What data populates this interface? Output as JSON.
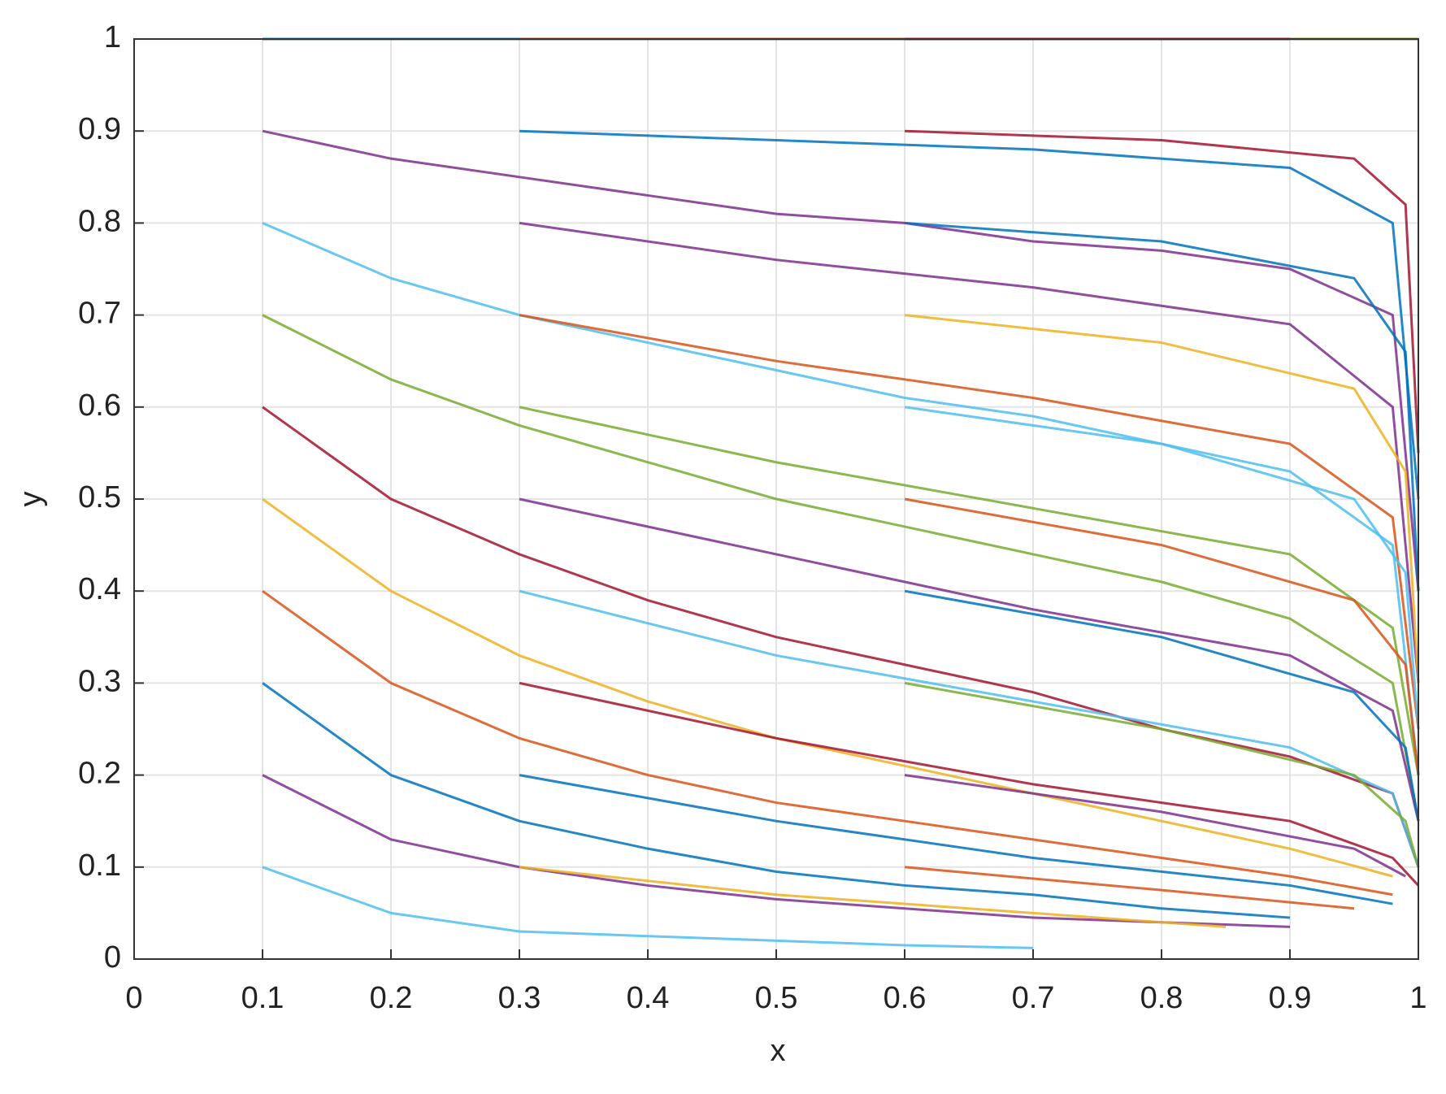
{
  "chart_data": {
    "type": "line",
    "x_label": "x",
    "y_label": "y",
    "grid": true,
    "xlim": [
      0,
      1
    ],
    "ylim": [
      0,
      1
    ],
    "xticks": [
      0,
      0.1,
      0.2,
      0.3,
      0.4,
      0.5,
      0.6,
      0.7,
      0.8,
      0.9,
      1
    ],
    "yticks": [
      0,
      0.1,
      0.2,
      0.3,
      0.4,
      0.5,
      0.6,
      0.7,
      0.8,
      0.9,
      1
    ],
    "series": [
      {
        "color": "#0072BD",
        "x": [
          0.1,
          1
        ],
        "values": [
          1,
          1
        ]
      },
      {
        "color": "#D95319",
        "x": [
          0.3,
          1
        ],
        "values": [
          1,
          1
        ]
      },
      {
        "color": "#A2142F",
        "x": [
          0.6,
          1
        ],
        "values": [
          1,
          1
        ]
      },
      {
        "color": "#77AC30",
        "x": [
          0.9,
          1
        ],
        "values": [
          1,
          1
        ]
      },
      {
        "color": "#7E2F8E",
        "x": [
          0.1,
          0.2,
          0.3,
          0.4,
          0.5,
          0.6,
          0.7,
          0.8,
          0.9,
          0.98,
          1
        ],
        "values": [
          0.9,
          0.87,
          0.85,
          0.83,
          0.81,
          0.8,
          0.78,
          0.77,
          0.75,
          0.7,
          0.4
        ]
      },
      {
        "color": "#4DBEEE",
        "x": [
          0.1,
          0.2,
          0.3,
          0.4,
          0.5,
          0.6,
          0.7,
          0.8,
          0.9,
          0.98,
          1
        ],
        "values": [
          0.8,
          0.74,
          0.7,
          0.67,
          0.64,
          0.61,
          0.59,
          0.56,
          0.53,
          0.45,
          0.2
        ]
      },
      {
        "color": "#77AC30",
        "x": [
          0.1,
          0.2,
          0.3,
          0.4,
          0.5,
          0.6,
          0.7,
          0.8,
          0.9,
          0.98,
          1
        ],
        "values": [
          0.7,
          0.63,
          0.58,
          0.54,
          0.5,
          0.47,
          0.44,
          0.41,
          0.37,
          0.3,
          0.15
        ]
      },
      {
        "color": "#A2142F",
        "x": [
          0.1,
          0.2,
          0.3,
          0.4,
          0.5,
          0.6,
          0.7,
          0.8,
          0.9,
          0.98,
          1
        ],
        "values": [
          0.6,
          0.5,
          0.44,
          0.39,
          0.35,
          0.32,
          0.29,
          0.25,
          0.22,
          0.18,
          0.1
        ]
      },
      {
        "color": "#EDB120",
        "x": [
          0.1,
          0.2,
          0.3,
          0.4,
          0.5,
          0.6,
          0.7,
          0.8,
          0.9,
          0.98
        ],
        "values": [
          0.5,
          0.4,
          0.33,
          0.28,
          0.24,
          0.21,
          0.18,
          0.15,
          0.12,
          0.09
        ]
      },
      {
        "color": "#D95319",
        "x": [
          0.1,
          0.2,
          0.3,
          0.4,
          0.5,
          0.6,
          0.7,
          0.8,
          0.9,
          0.98
        ],
        "values": [
          0.4,
          0.3,
          0.24,
          0.2,
          0.17,
          0.15,
          0.13,
          0.11,
          0.09,
          0.07
        ]
      },
      {
        "color": "#0072BD",
        "x": [
          0.1,
          0.2,
          0.3,
          0.4,
          0.5,
          0.6,
          0.7,
          0.8,
          0.9
        ],
        "values": [
          0.3,
          0.2,
          0.15,
          0.12,
          0.095,
          0.08,
          0.07,
          0.055,
          0.045
        ]
      },
      {
        "color": "#7E2F8E",
        "x": [
          0.1,
          0.2,
          0.3,
          0.4,
          0.5,
          0.6,
          0.7,
          0.8,
          0.9
        ],
        "values": [
          0.2,
          0.13,
          0.1,
          0.08,
          0.065,
          0.055,
          0.045,
          0.04,
          0.035
        ]
      },
      {
        "color": "#4DBEEE",
        "x": [
          0.1,
          0.2,
          0.3,
          0.4,
          0.5,
          0.6,
          0.7
        ],
        "values": [
          0.1,
          0.05,
          0.03,
          0.025,
          0.02,
          0.015,
          0.012
        ]
      },
      {
        "color": "#0072BD",
        "x": [
          0.3,
          0.5,
          0.7,
          0.9,
          0.98,
          1
        ],
        "values": [
          0.9,
          0.89,
          0.88,
          0.86,
          0.8,
          0.5
        ]
      },
      {
        "color": "#7E2F8E",
        "x": [
          0.3,
          0.5,
          0.7,
          0.9,
          0.98,
          1
        ],
        "values": [
          0.8,
          0.76,
          0.73,
          0.69,
          0.6,
          0.3
        ]
      },
      {
        "color": "#D95319",
        "x": [
          0.3,
          0.5,
          0.7,
          0.9,
          0.98,
          1
        ],
        "values": [
          0.7,
          0.65,
          0.61,
          0.56,
          0.48,
          0.25
        ]
      },
      {
        "color": "#77AC30",
        "x": [
          0.3,
          0.5,
          0.7,
          0.9,
          0.98,
          1
        ],
        "values": [
          0.6,
          0.54,
          0.49,
          0.44,
          0.36,
          0.2
        ]
      },
      {
        "color": "#7E2F8E",
        "x": [
          0.3,
          0.5,
          0.7,
          0.9,
          0.98,
          1
        ],
        "values": [
          0.5,
          0.44,
          0.38,
          0.33,
          0.27,
          0.15
        ]
      },
      {
        "color": "#4DBEEE",
        "x": [
          0.3,
          0.5,
          0.7,
          0.9,
          0.98,
          1
        ],
        "values": [
          0.4,
          0.33,
          0.28,
          0.23,
          0.18,
          0.1
        ]
      },
      {
        "color": "#A2142F",
        "x": [
          0.3,
          0.5,
          0.7,
          0.9,
          0.98,
          1
        ],
        "values": [
          0.3,
          0.24,
          0.19,
          0.15,
          0.11,
          0.08
        ]
      },
      {
        "color": "#0072BD",
        "x": [
          0.3,
          0.5,
          0.7,
          0.9,
          0.98
        ],
        "values": [
          0.2,
          0.15,
          0.11,
          0.08,
          0.06
        ]
      },
      {
        "color": "#EDB120",
        "x": [
          0.3,
          0.5,
          0.7,
          0.85
        ],
        "values": [
          0.1,
          0.07,
          0.05,
          0.035
        ]
      },
      {
        "color": "#A2142F",
        "x": [
          0.6,
          0.8,
          0.95,
          0.99,
          1
        ],
        "values": [
          0.9,
          0.89,
          0.87,
          0.82,
          0.55
        ]
      },
      {
        "color": "#0072BD",
        "x": [
          0.6,
          0.8,
          0.95,
          0.99,
          1
        ],
        "values": [
          0.8,
          0.78,
          0.74,
          0.66,
          0.4
        ]
      },
      {
        "color": "#EDB120",
        "x": [
          0.6,
          0.8,
          0.95,
          0.99,
          1
        ],
        "values": [
          0.7,
          0.67,
          0.62,
          0.53,
          0.3
        ]
      },
      {
        "color": "#4DBEEE",
        "x": [
          0.6,
          0.8,
          0.95,
          0.99,
          1
        ],
        "values": [
          0.6,
          0.56,
          0.5,
          0.42,
          0.25
        ]
      },
      {
        "color": "#D95319",
        "x": [
          0.6,
          0.8,
          0.95,
          0.99,
          1
        ],
        "values": [
          0.5,
          0.45,
          0.39,
          0.32,
          0.2
        ]
      },
      {
        "color": "#0072BD",
        "x": [
          0.6,
          0.8,
          0.95,
          0.99,
          1
        ],
        "values": [
          0.4,
          0.35,
          0.29,
          0.23,
          0.15
        ]
      },
      {
        "color": "#77AC30",
        "x": [
          0.6,
          0.8,
          0.95,
          0.99,
          1
        ],
        "values": [
          0.3,
          0.25,
          0.2,
          0.15,
          0.1
        ]
      },
      {
        "color": "#7E2F8E",
        "x": [
          0.6,
          0.8,
          0.95,
          0.99
        ],
        "values": [
          0.2,
          0.16,
          0.12,
          0.09
        ]
      },
      {
        "color": "#D95319",
        "x": [
          0.6,
          0.8,
          0.95
        ],
        "values": [
          0.1,
          0.075,
          0.055
        ]
      }
    ]
  }
}
